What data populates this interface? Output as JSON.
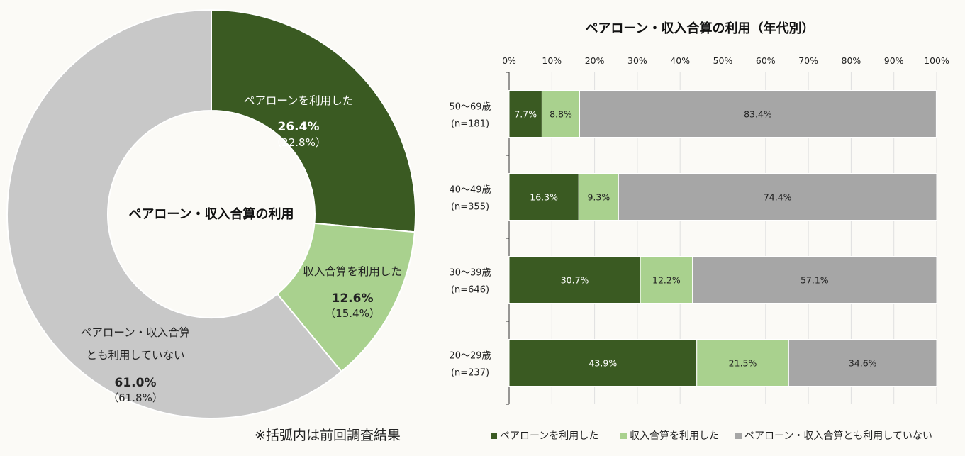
{
  "colors": {
    "used_pair_loan": "#3a5a22",
    "used_income_combine": "#a9d18e",
    "used_neither_donut": "#c8c8c8",
    "used_neither_bar": "#a6a6a6",
    "axis": "#333333",
    "gridline": "#e0e0e0"
  },
  "note": "※括弧内は前回調査結果",
  "chart_data": [
    {
      "type": "pie",
      "title": "ペアローン・収入合算の利用",
      "slices": [
        {
          "label": "ペアローンを利用した",
          "value": 26.4,
          "value_label": "26.4%",
          "previous_label": "（22.8%）",
          "color_key": "used_pair_loan"
        },
        {
          "label": "収入合算を利用した",
          "value": 12.6,
          "value_label": "12.6%",
          "previous_label": "（15.4%）",
          "color_key": "used_income_combine"
        },
        {
          "label_lines": [
            "ペアローン・収入合算",
            "とも利用していない"
          ],
          "value": 61.0,
          "value_label": "61.0%",
          "previous_label": "（61.8%）",
          "color_key": "used_neither_donut"
        }
      ]
    },
    {
      "type": "bar",
      "orientation": "horizontal",
      "stacked": true,
      "title": "ペアローン・収入合算の利用（年代別）",
      "xlim": [
        0,
        100
      ],
      "x_ticks": [
        "0%",
        "10%",
        "20%",
        "30%",
        "40%",
        "50%",
        "60%",
        "70%",
        "80%",
        "90%",
        "100%"
      ],
      "grid": true,
      "legend_position": "bottom",
      "categories": [
        {
          "line1": "50〜69歳",
          "line2": "(n=181)"
        },
        {
          "line1": "40〜49歳",
          "line2": "(n=355)"
        },
        {
          "line1": "30〜39歳",
          "line2": "(n=646)"
        },
        {
          "line1": "20〜29歳",
          "line2": "(n=237)"
        }
      ],
      "series": [
        {
          "name": "ペアローンを利用した",
          "values": [
            7.7,
            16.3,
            30.7,
            43.9
          ],
          "labels": [
            "7.7%",
            "16.3%",
            "30.7%",
            "43.9%"
          ],
          "color_key": "used_pair_loan",
          "label_color": "#ffffff"
        },
        {
          "name": "収入合算を利用した",
          "values": [
            8.8,
            9.3,
            12.2,
            21.5
          ],
          "labels": [
            "8.8%",
            "9.3%",
            "12.2%",
            "21.5%"
          ],
          "color_key": "used_income_combine",
          "label_color": "#222222"
        },
        {
          "name": "ペアローン・収入合算とも利用していない",
          "values": [
            83.4,
            74.4,
            57.1,
            34.6
          ],
          "labels": [
            "83.4%",
            "74.4%",
            "57.1%",
            "34.6%"
          ],
          "color_key": "used_neither_bar",
          "label_color": "#222222"
        }
      ]
    }
  ]
}
